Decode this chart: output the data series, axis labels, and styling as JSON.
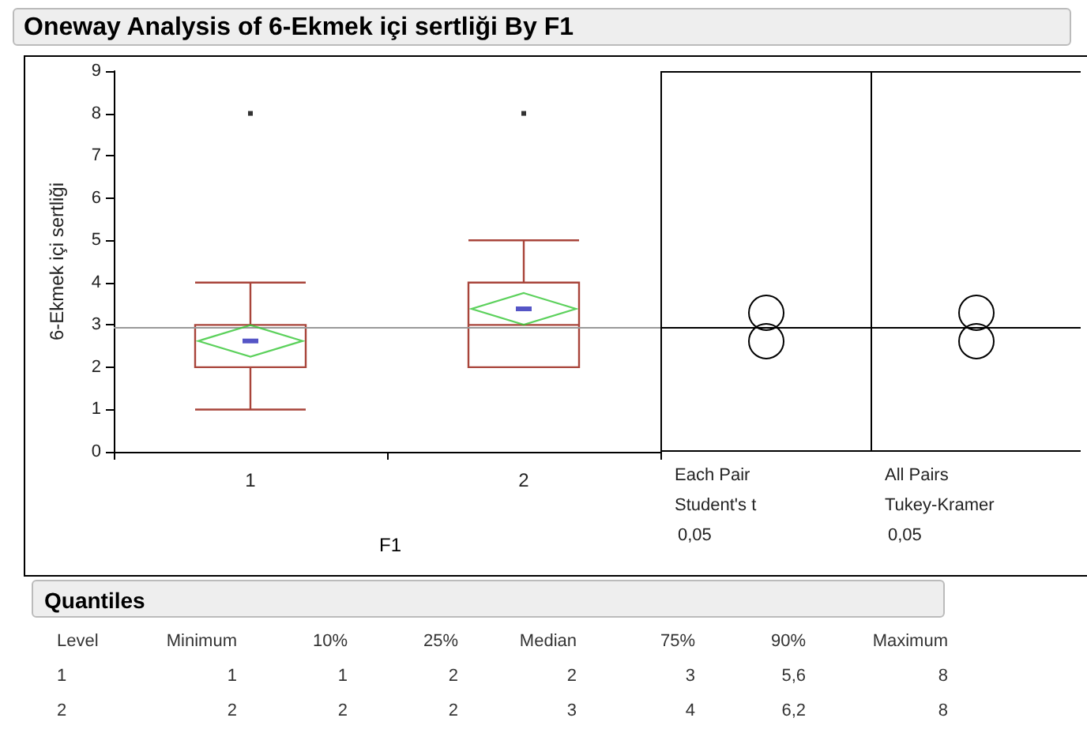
{
  "chart_data": {
    "type": "box",
    "title": "Oneway Analysis of 6-Ekmek içi sertliği By F1",
    "xlabel": "F1",
    "ylabel": "6-Ekmek içi sertliği",
    "categories": [
      "1",
      "2"
    ],
    "series": [
      {
        "color": "#a8443a",
        "boxes": [
          {
            "low": 1,
            "q1": 2,
            "median": 2,
            "q3": 3,
            "high": 4,
            "mean": 2.62,
            "outliers": [
              8
            ]
          },
          {
            "low": 2,
            "q1": 2,
            "median": 3,
            "q3": 4,
            "high": 5,
            "mean": 3.38,
            "outliers": [
              8
            ]
          }
        ]
      }
    ],
    "ylim": [
      0,
      9
    ],
    "yticks": [
      0,
      1,
      2,
      3,
      4,
      5,
      6,
      7,
      8,
      9
    ],
    "ref_lines": [
      {
        "axis": "y",
        "value": 2.95,
        "color": "#999999"
      }
    ],
    "annotations": [
      "Each Pair",
      "Student's t",
      "0,05",
      "All Pairs",
      "Tukey-Kramer",
      "0,05",
      "Quantiles",
      "Level\tMinimum\t10%\t25%\tMedian\t75%\t90%\tMaximum",
      "1\t1\t1\t2\t2\t3\t5,6\t8",
      "2\t2\t2\t2\t3\t4\t6,2\t8"
    ]
  }
}
